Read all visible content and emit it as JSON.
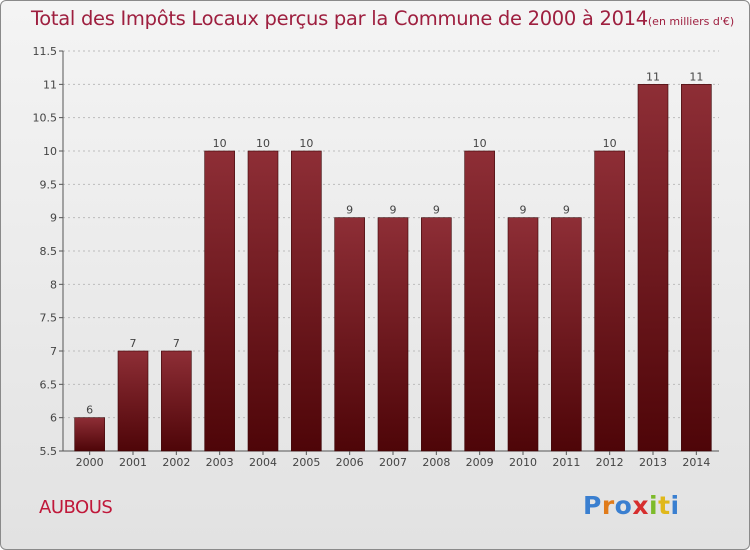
{
  "chart_data": {
    "type": "bar",
    "title": "Total des Impôts Locaux perçus par la Commune de 2000 à 2014",
    "subtitle": "(en milliers d'€)",
    "categories": [
      "2000",
      "2001",
      "2002",
      "2003",
      "2004",
      "2005",
      "2006",
      "2007",
      "2008",
      "2009",
      "2010",
      "2011",
      "2012",
      "2013",
      "2014"
    ],
    "values": [
      6,
      7,
      7,
      10,
      10,
      10,
      9,
      9,
      9,
      10,
      9,
      9,
      10,
      11,
      11
    ],
    "data_labels": [
      "6",
      "7",
      "7",
      "10",
      "10",
      "10",
      "9",
      "9",
      "9",
      "10",
      "9",
      "9",
      "10",
      "11",
      "11"
    ],
    "ylim": [
      5.5,
      11.5
    ],
    "yticks": [
      5.5,
      6,
      6.5,
      7,
      7.5,
      8,
      8.5,
      9,
      9.5,
      10,
      10.5,
      11,
      11.5
    ],
    "ytick_labels": [
      "5.5",
      "6",
      "6.5",
      "7",
      "7.5",
      "8",
      "8.5",
      "9",
      "9.5",
      "10",
      "10.5",
      "11",
      "11.5"
    ],
    "grid": true,
    "bar_color": "#7a1a22",
    "xlabel": "",
    "ylabel": ""
  },
  "commune": "AUBOUS",
  "logo": {
    "letters": [
      "P",
      "r",
      "o",
      "x",
      "i",
      "t",
      "i"
    ],
    "colors": [
      "#3a7fd0",
      "#e07b1a",
      "#3a7fd0",
      "#d62e2e",
      "#7dbb2a",
      "#e0b81a",
      "#3a7fd0"
    ]
  }
}
